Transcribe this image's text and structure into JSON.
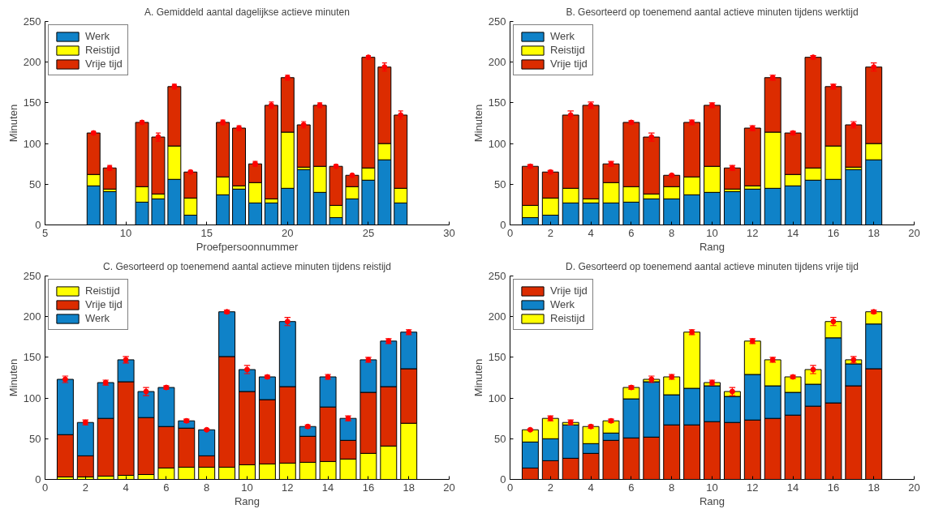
{
  "chart_data": [
    {
      "type": "bar",
      "stacked": true,
      "title": "A. Gemiddeld aantal dagelijkse actieve minuten",
      "xlabel": "Proefpersoonnummer",
      "ylabel": "Minuten",
      "x": [
        8,
        9,
        10,
        11,
        12,
        13,
        14,
        15,
        16,
        17,
        18,
        19,
        20,
        21,
        22,
        23,
        24,
        25,
        26,
        27
      ],
      "xlim": [
        5,
        30
      ],
      "xticks": [
        5,
        10,
        15,
        20,
        25,
        30
      ],
      "ylim": [
        0,
        250
      ],
      "yticks": [
        0,
        50,
        100,
        150,
        200,
        250
      ],
      "grid": false,
      "legend": "top left",
      "series": [
        {
          "name": "Werk",
          "color": "#0f82c8",
          "values": [
            48,
            41,
            null,
            28,
            32,
            56,
            12,
            null,
            37,
            44,
            27,
            27,
            45,
            68,
            40,
            9,
            32,
            55,
            80,
            27
          ]
        },
        {
          "name": "Reistijd",
          "color": "#ffff00",
          "values": [
            14,
            3,
            null,
            19,
            6,
            41,
            21,
            null,
            22,
            4,
            25,
            5,
            69,
            3,
            32,
            15,
            15,
            15,
            20,
            18
          ]
        },
        {
          "name": "Vrije tijd",
          "color": "#dc2c00",
          "values": [
            51,
            26,
            null,
            79,
            70,
            73,
            32,
            null,
            67,
            71,
            23,
            115,
            67,
            52,
            75,
            48,
            14,
            136,
            94,
            90
          ]
        },
        {
          "type": "scatter",
          "marker": "circle",
          "color": "#ff0000",
          "values": [
            113,
            70,
            null,
            126,
            108,
            170,
            65,
            null,
            126,
            119,
            75,
            147,
            181,
            123,
            147,
            72,
            61,
            206,
            194,
            135
          ],
          "errors": [
            2,
            3,
            null,
            2,
            5,
            3,
            2,
            null,
            3,
            3,
            3,
            4,
            3,
            4,
            3,
            2,
            1,
            2,
            5,
            5
          ]
        }
      ]
    },
    {
      "type": "bar",
      "stacked": true,
      "title": "B. Gesorteerd op toenemend aantal actieve minuten tijdens werktijd",
      "xlabel": "Rang",
      "ylabel": "Minuten",
      "x": [
        1,
        2,
        3,
        4,
        5,
        6,
        7,
        8,
        9,
        10,
        11,
        12,
        13,
        14,
        15,
        16,
        17,
        18
      ],
      "xlim": [
        0,
        20
      ],
      "xticks": [
        0,
        2,
        4,
        6,
        8,
        10,
        12,
        14,
        16,
        18,
        20
      ],
      "ylim": [
        0,
        250
      ],
      "yticks": [
        0,
        50,
        100,
        150,
        200,
        250
      ],
      "grid": false,
      "legend": "top left",
      "series": [
        {
          "name": "Werk",
          "color": "#0f82c8",
          "values": [
            9,
            12,
            27,
            27,
            27,
            28,
            32,
            32,
            37,
            40,
            41,
            44,
            45,
            48,
            55,
            56,
            68,
            80
          ]
        },
        {
          "name": "Reistijd",
          "color": "#ffff00",
          "values": [
            15,
            21,
            18,
            5,
            25,
            19,
            6,
            15,
            22,
            32,
            3,
            4,
            69,
            14,
            15,
            41,
            3,
            20
          ]
        },
        {
          "name": "Vrije tijd",
          "color": "#dc2c00",
          "values": [
            48,
            32,
            90,
            115,
            23,
            79,
            70,
            14,
            67,
            75,
            26,
            71,
            67,
            51,
            136,
            73,
            52,
            94
          ]
        },
        {
          "type": "scatter",
          "marker": "circle",
          "color": "#ff0000",
          "values": [
            72,
            65,
            135,
            147,
            75,
            126,
            108,
            61,
            126,
            147,
            70,
            119,
            181,
            113,
            206,
            170,
            123,
            194
          ],
          "errors": [
            2,
            2,
            5,
            4,
            3,
            2,
            5,
            1,
            3,
            3,
            3,
            3,
            3,
            2,
            2,
            3,
            4,
            5
          ]
        }
      ]
    },
    {
      "type": "bar",
      "stacked": true,
      "title": "C. Gesorteerd op toenemend aantal actieve minuten tijdens reistijd",
      "xlabel": "Rang",
      "ylabel": "Minuten",
      "x": [
        1,
        2,
        3,
        4,
        5,
        6,
        7,
        8,
        9,
        10,
        11,
        12,
        13,
        14,
        15,
        16,
        17,
        18
      ],
      "xlim": [
        0,
        20
      ],
      "xticks": [
        0,
        2,
        4,
        6,
        8,
        10,
        12,
        14,
        16,
        18,
        20
      ],
      "ylim": [
        0,
        250
      ],
      "yticks": [
        0,
        50,
        100,
        150,
        200,
        250
      ],
      "grid": false,
      "legend": "top left",
      "series": [
        {
          "name": "Reistijd",
          "color": "#ffff00",
          "values": [
            3,
            3,
            4,
            5,
            6,
            14,
            15,
            15,
            15,
            18,
            19,
            20,
            21,
            22,
            25,
            32,
            41,
            69
          ]
        },
        {
          "name": "Vrije tijd",
          "color": "#dc2c00",
          "values": [
            52,
            26,
            71,
            115,
            70,
            51,
            48,
            14,
            136,
            90,
            79,
            94,
            32,
            67,
            23,
            75,
            73,
            67
          ]
        },
        {
          "name": "Werk",
          "color": "#0f82c8",
          "values": [
            68,
            41,
            44,
            27,
            32,
            48,
            9,
            32,
            55,
            27,
            28,
            80,
            12,
            37,
            27,
            40,
            56,
            45
          ]
        },
        {
          "type": "scatter",
          "marker": "circle",
          "color": "#ff0000",
          "values": [
            123,
            70,
            119,
            147,
            108,
            113,
            72,
            61,
            206,
            135,
            126,
            194,
            65,
            126,
            75,
            147,
            170,
            181
          ],
          "errors": [
            4,
            3,
            3,
            4,
            5,
            2,
            2,
            1,
            2,
            5,
            2,
            5,
            2,
            3,
            3,
            3,
            3,
            3
          ]
        }
      ]
    },
    {
      "type": "bar",
      "stacked": true,
      "title": "D. Gesorteerd op toenemend aantal actieve minuten tijdens vrije tijd",
      "xlabel": "Rang",
      "ylabel": "Minuten",
      "x": [
        1,
        2,
        3,
        4,
        5,
        6,
        7,
        8,
        9,
        10,
        11,
        12,
        13,
        14,
        15,
        16,
        17,
        18
      ],
      "xlim": [
        0,
        20
      ],
      "xticks": [
        0,
        2,
        4,
        6,
        8,
        10,
        12,
        14,
        16,
        18,
        20
      ],
      "ylim": [
        0,
        250
      ],
      "yticks": [
        0,
        50,
        100,
        150,
        200,
        250
      ],
      "grid": false,
      "legend": "top left",
      "series": [
        {
          "name": "Vrije tijd",
          "color": "#dc2c00",
          "values": [
            14,
            23,
            26,
            32,
            48,
            51,
            52,
            67,
            67,
            71,
            70,
            73,
            75,
            79,
            90,
            94,
            115,
            136
          ]
        },
        {
          "name": "Werk",
          "color": "#0f82c8",
          "values": [
            32,
            27,
            41,
            12,
            9,
            48,
            68,
            37,
            45,
            44,
            32,
            56,
            40,
            28,
            27,
            80,
            27,
            55
          ]
        },
        {
          "name": "Reistijd",
          "color": "#ffff00",
          "values": [
            15,
            25,
            3,
            21,
            15,
            14,
            3,
            22,
            69,
            4,
            6,
            41,
            32,
            19,
            18,
            20,
            5,
            15
          ]
        },
        {
          "type": "scatter",
          "marker": "circle",
          "color": "#ff0000",
          "values": [
            61,
            75,
            70,
            65,
            72,
            113,
            123,
            126,
            181,
            119,
            108,
            170,
            147,
            126,
            135,
            194,
            147,
            206
          ],
          "errors": [
            1,
            3,
            3,
            2,
            2,
            2,
            4,
            3,
            3,
            3,
            5,
            3,
            3,
            2,
            5,
            5,
            4,
            2
          ]
        }
      ]
    }
  ]
}
